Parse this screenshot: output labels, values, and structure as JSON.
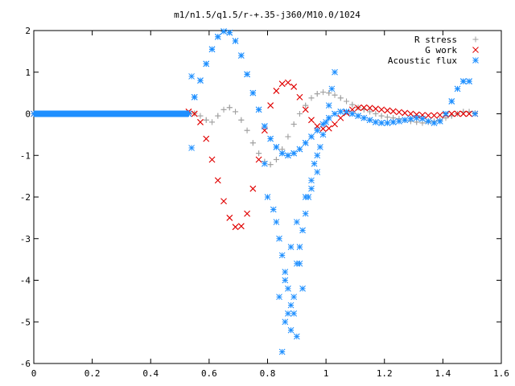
{
  "chart_data": {
    "type": "scatter",
    "title": "m1/n1.5/q1.5/r-+.35-j360/M10.0/1024",
    "xlabel": "",
    "ylabel": "",
    "xlim": [
      0,
      1.6
    ],
    "ylim": [
      -6,
      2
    ],
    "xticks": [
      0,
      0.2,
      0.4,
      0.6,
      0.8,
      1,
      1.2,
      1.4,
      1.6
    ],
    "xtick_labels": [
      "0",
      "0.2",
      "0.4",
      "0.6",
      "0.8",
      "1",
      "1.2",
      "1.4",
      "1.6"
    ],
    "yticks": [
      -6,
      -5,
      -4,
      -3,
      -2,
      -1,
      0,
      1,
      2
    ],
    "ytick_labels": [
      "-6",
      "-5",
      "-4",
      "-3",
      "-2",
      "-1",
      "0",
      "1",
      "2"
    ],
    "grid": false,
    "legend_position": "top-right",
    "series": [
      {
        "name": "R stress",
        "marker": "plus",
        "color": "#a0a0a0",
        "x": [
          0.0,
          0.53,
          0.55,
          0.57,
          0.59,
          0.61,
          0.63,
          0.65,
          0.67,
          0.69,
          0.71,
          0.73,
          0.75,
          0.77,
          0.79,
          0.81,
          0.83,
          0.85,
          0.87,
          0.89,
          0.91,
          0.93,
          0.95,
          0.97,
          0.99,
          1.01,
          1.03,
          1.05,
          1.07,
          1.09,
          1.11,
          1.13,
          1.15,
          1.17,
          1.19,
          1.21,
          1.23,
          1.25,
          1.27,
          1.29,
          1.31,
          1.33,
          1.35,
          1.37,
          1.39,
          1.41,
          1.43,
          1.45,
          1.47,
          1.49,
          1.51
        ],
        "y": [
          0.0,
          0.02,
          0.01,
          -0.05,
          -0.15,
          -0.2,
          -0.05,
          0.1,
          0.15,
          0.05,
          -0.15,
          -0.4,
          -0.7,
          -0.95,
          -1.15,
          -1.22,
          -1.1,
          -0.85,
          -0.55,
          -0.25,
          0.0,
          0.2,
          0.38,
          0.48,
          0.52,
          0.5,
          0.45,
          0.38,
          0.3,
          0.22,
          0.15,
          0.1,
          0.05,
          0.0,
          -0.05,
          -0.08,
          -0.1,
          -0.12,
          -0.15,
          -0.18,
          -0.2,
          -0.22,
          -0.2,
          -0.18,
          -0.15,
          -0.1,
          -0.05,
          0.0,
          0.05,
          0.05,
          0.02
        ]
      },
      {
        "name": "G work",
        "marker": "cross",
        "color": "#e00000",
        "x": [
          0.0,
          0.53,
          0.55,
          0.57,
          0.59,
          0.61,
          0.63,
          0.65,
          0.67,
          0.69,
          0.71,
          0.73,
          0.75,
          0.77,
          0.79,
          0.81,
          0.83,
          0.85,
          0.87,
          0.89,
          0.91,
          0.93,
          0.95,
          0.97,
          0.99,
          1.01,
          1.03,
          1.05,
          1.07,
          1.09,
          1.11,
          1.13,
          1.15,
          1.17,
          1.19,
          1.21,
          1.23,
          1.25,
          1.27,
          1.29,
          1.31,
          1.33,
          1.35,
          1.37,
          1.39,
          1.41,
          1.43,
          1.45,
          1.47,
          1.49,
          1.51
        ],
        "y": [
          0.0,
          0.05,
          0.0,
          -0.2,
          -0.6,
          -1.1,
          -1.6,
          -2.1,
          -2.5,
          -2.72,
          -2.7,
          -2.4,
          -1.8,
          -1.1,
          -0.4,
          0.2,
          0.55,
          0.72,
          0.75,
          0.65,
          0.4,
          0.1,
          -0.15,
          -0.3,
          -0.36,
          -0.35,
          -0.25,
          -0.1,
          0.02,
          0.1,
          0.14,
          0.15,
          0.14,
          0.12,
          0.1,
          0.08,
          0.06,
          0.04,
          0.02,
          0.0,
          -0.02,
          -0.03,
          -0.04,
          -0.04,
          -0.03,
          -0.02,
          0.0,
          0.0,
          0.0,
          0.0,
          0.0
        ]
      },
      {
        "name": "Acoustic flux",
        "marker": "star",
        "color": "#1e8fff",
        "x": [
          0.0,
          0.53,
          0.55,
          0.57,
          0.59,
          0.61,
          0.63,
          0.65,
          0.67,
          0.69,
          0.71,
          0.73,
          0.75,
          0.77,
          0.79,
          0.81,
          0.83,
          0.85,
          0.87,
          0.89,
          0.91,
          0.93,
          0.95,
          0.97,
          0.99,
          1.01,
          1.03,
          1.05,
          1.07,
          1.09,
          1.11,
          1.13,
          1.15,
          1.17,
          1.19,
          1.21,
          1.23,
          1.25,
          1.27,
          1.29,
          1.31,
          1.33,
          1.35,
          1.37,
          1.39,
          1.41,
          1.43,
          1.45,
          1.47,
          1.49,
          1.51,
          0.54,
          0.55,
          0.54,
          0.79,
          0.8,
          0.82,
          0.83,
          0.84,
          0.85,
          0.86,
          0.87,
          0.88,
          0.89,
          0.9,
          0.91,
          0.92,
          0.93,
          0.94,
          0.95,
          0.96,
          0.97,
          0.98,
          0.99,
          1.0,
          1.01,
          1.02,
          1.03,
          0.84,
          0.86,
          0.88,
          0.9,
          0.92,
          0.85,
          0.87,
          0.89,
          0.91,
          0.93,
          0.86,
          0.88,
          0.9,
          0.95,
          0.97
        ],
        "y": [
          0.0,
          0.0,
          0.4,
          0.8,
          1.2,
          1.55,
          1.85,
          1.98,
          1.95,
          1.75,
          1.4,
          0.95,
          0.5,
          0.1,
          -0.3,
          -0.6,
          -0.8,
          -0.95,
          -1.0,
          -0.95,
          -0.85,
          -0.7,
          -0.55,
          -0.4,
          -0.25,
          -0.1,
          0.0,
          0.05,
          0.05,
          0.0,
          -0.05,
          -0.1,
          -0.15,
          -0.2,
          -0.22,
          -0.22,
          -0.2,
          -0.18,
          -0.15,
          -0.12,
          -0.1,
          -0.12,
          -0.18,
          -0.22,
          -0.18,
          0.0,
          0.3,
          0.6,
          0.78,
          0.78,
          0.0,
          -0.82,
          0.4,
          0.9,
          -1.2,
          -2.0,
          -2.3,
          -2.6,
          -3.0,
          -3.4,
          -3.8,
          -4.2,
          -4.6,
          -4.8,
          -3.6,
          -3.2,
          -2.8,
          -2.4,
          -2.0,
          -1.6,
          -1.2,
          -1.0,
          -0.8,
          -0.5,
          -0.2,
          0.2,
          0.6,
          1.0,
          -4.4,
          -5.0,
          -5.2,
          -5.35,
          -4.2,
          -5.72,
          -4.8,
          -4.4,
          -3.6,
          -2.0,
          -4.0,
          -3.2,
          -2.6,
          -1.8,
          -1.4
        ]
      }
    ]
  }
}
